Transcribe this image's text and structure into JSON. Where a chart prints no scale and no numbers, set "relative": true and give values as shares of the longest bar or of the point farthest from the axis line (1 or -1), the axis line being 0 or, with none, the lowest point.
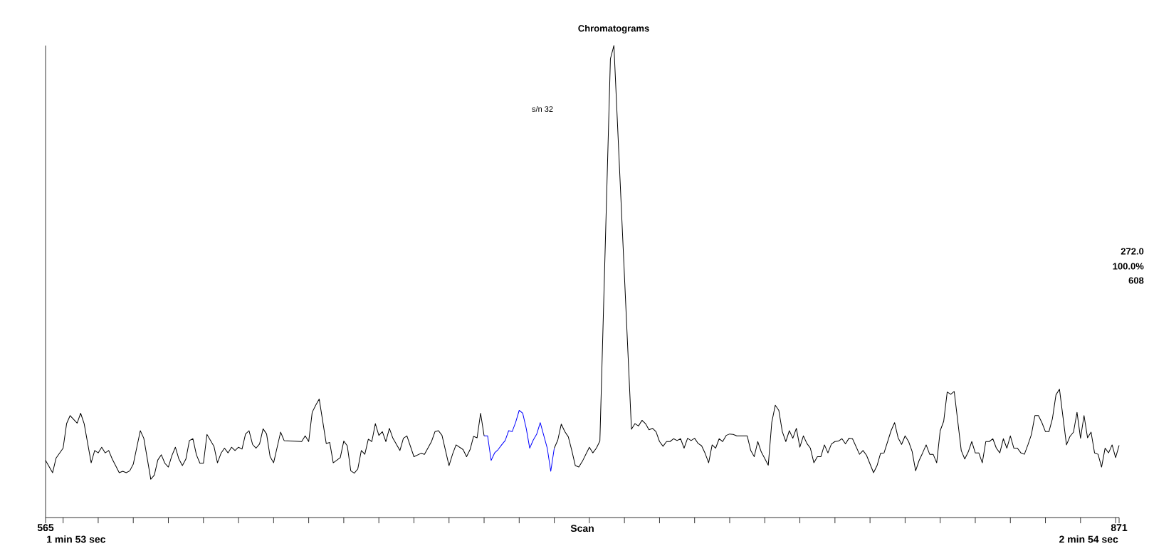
{
  "chart_data": {
    "type": "line",
    "title": "Chromatograms",
    "xlabel": "Scan",
    "relative": true,
    "xlim": [
      565,
      871
    ],
    "xticks": [
      565,
      {
        "value": 570,
        "label": null
      },
      {
        "value": 580,
        "label": null
      },
      {
        "value": 590,
        "label": null
      },
      {
        "value": 600,
        "label": null
      },
      {
        "value": 610,
        "label": null
      },
      {
        "value": 620,
        "label": null
      },
      {
        "value": 630,
        "label": null
      },
      {
        "value": 640,
        "label": null
      },
      {
        "value": 650,
        "label": null
      },
      {
        "value": 660,
        "label": null
      },
      {
        "value": 670,
        "label": null
      },
      {
        "value": 680,
        "label": null
      },
      {
        "value": 690,
        "label": null
      },
      {
        "value": 700,
        "label": null
      },
      {
        "value": 710,
        "label": null
      },
      {
        "value": 720,
        "label": null
      },
      {
        "value": 730,
        "label": null
      },
      {
        "value": 740,
        "label": null
      },
      {
        "value": 750,
        "label": null
      },
      {
        "value": 760,
        "label": null
      },
      {
        "value": 770,
        "label": null
      },
      {
        "value": 780,
        "label": null
      },
      {
        "value": 790,
        "label": null
      },
      {
        "value": 800,
        "label": null
      },
      {
        "value": 810,
        "label": null
      },
      {
        "value": 820,
        "label": null
      },
      {
        "value": 830,
        "label": null
      },
      {
        "value": 840,
        "label": null
      },
      {
        "value": 850,
        "label": null
      },
      {
        "value": 860,
        "label": null
      },
      {
        "value": 870,
        "label": null
      },
      871
    ],
    "annotations": [
      "1 min 53 sec",
      "2 min 54 sec",
      "s/n 32",
      "272.0",
      "100.0%",
      "608"
    ],
    "series": [
      {
        "color": "#000000",
        "x": [
          565,
          567,
          568,
          570,
          571,
          572,
          574,
          575,
          576,
          578,
          579,
          580,
          581,
          582,
          583,
          584,
          586,
          587,
          588,
          589,
          590,
          592,
          593,
          595,
          596,
          597,
          598,
          599,
          600,
          601,
          602,
          603,
          604,
          605,
          606,
          607,
          608,
          609,
          610,
          611,
          613,
          614,
          615,
          616,
          617,
          618,
          619,
          620,
          621,
          622,
          623,
          624,
          625,
          626,
          627,
          628,
          629,
          630,
          632,
          633,
          638,
          639,
          640,
          641,
          642,
          643,
          645,
          646,
          647,
          649,
          650,
          651,
          652,
          653,
          654,
          655,
          656,
          657,
          658,
          659,
          660,
          661,
          662,
          663,
          664,
          666,
          667,
          668,
          670,
          672,
          673,
          675,
          676,
          677,
          678,
          680,
          681,
          682,
          684,
          685,
          686,
          687,
          688,
          689,
          690
        ],
        "values": [
          0.121,
          0.095,
          0.126,
          0.147,
          0.199,
          0.216,
          0.2,
          0.221,
          0.199,
          0.116,
          0.142,
          0.137,
          0.149,
          0.137,
          0.142,
          0.124,
          0.095,
          0.098,
          0.095,
          0.099,
          0.113,
          0.184,
          0.168,
          0.081,
          0.09,
          0.122,
          0.133,
          0.115,
          0.107,
          0.131,
          0.149,
          0.124,
          0.11,
          0.124,
          0.163,
          0.167,
          0.133,
          0.115,
          0.115,
          0.176,
          0.151,
          0.116,
          0.136,
          0.147,
          0.137,
          0.149,
          0.142,
          0.149,
          0.145,
          0.177,
          0.184,
          0.155,
          0.147,
          0.156,
          0.188,
          0.177,
          0.129,
          0.116,
          0.181,
          0.163,
          0.161,
          0.173,
          0.161,
          0.223,
          0.238,
          0.251,
          0.157,
          0.159,
          0.116,
          0.127,
          0.162,
          0.152,
          0.099,
          0.094,
          0.103,
          0.142,
          0.134,
          0.166,
          0.161,
          0.199,
          0.174,
          0.182,
          0.161,
          0.189,
          0.168,
          0.142,
          0.168,
          0.173,
          0.129,
          0.136,
          0.134,
          0.161,
          0.182,
          0.184,
          0.174,
          0.11,
          0.134,
          0.154,
          0.144,
          0.129,
          0.144,
          0.172,
          0.169,
          0.221,
          0.173
        ]
      },
      {
        "color": "#0000ff",
        "x": [
          690,
          691,
          692,
          693,
          694,
          695,
          696,
          697,
          698,
          699,
          700,
          701,
          702,
          703,
          704,
          705,
          706,
          707,
          708,
          709,
          710
        ],
        "values": [
          0.173,
          0.173,
          0.121,
          0.137,
          0.144,
          0.154,
          0.163,
          0.184,
          0.182,
          0.202,
          0.227,
          0.221,
          0.189,
          0.147,
          0.164,
          0.177,
          0.201,
          0.174,
          0.147,
          0.098,
          0.147
        ]
      },
      {
        "color": "#000000",
        "x": [
          710,
          711,
          712,
          713,
          714,
          715,
          716,
          717,
          718,
          720,
          721,
          722,
          723,
          726,
          727,
          732,
          733,
          734,
          735,
          736,
          737,
          738,
          739,
          740,
          741,
          742,
          743,
          744,
          745,
          746,
          747,
          748,
          749,
          750,
          751,
          752,
          753,
          754,
          755,
          756,
          757,
          758,
          759,
          760,
          761,
          762,
          765,
          766,
          767,
          768,
          769,
          771,
          772,
          773,
          774,
          775,
          776,
          777,
          778,
          779,
          780,
          781,
          782,
          783,
          784,
          785,
          786,
          787,
          788,
          789,
          790,
          791,
          792,
          793,
          794,
          795,
          797,
          798,
          799,
          801,
          802,
          803,
          804,
          806,
          807,
          808,
          809,
          810,
          811,
          812,
          813,
          814,
          815,
          816,
          817,
          818,
          819,
          820,
          821,
          822,
          823,
          824,
          826,
          827,
          828,
          829,
          830,
          831,
          832,
          833,
          834,
          835,
          836,
          837,
          838,
          839,
          840,
          841,
          842,
          843,
          844,
          845,
          846,
          847,
          848,
          849,
          850,
          851,
          852,
          853,
          854,
          856,
          857,
          858,
          859,
          860,
          861,
          862,
          863,
          864,
          865,
          866,
          867,
          868,
          869,
          870,
          871
        ],
        "values": [
          0.147,
          0.164,
          0.198,
          0.182,
          0.171,
          0.142,
          0.11,
          0.107,
          0.119,
          0.149,
          0.137,
          0.147,
          0.162,
          0.972,
          1.0,
          0.187,
          0.199,
          0.194,
          0.206,
          0.199,
          0.186,
          0.189,
          0.182,
          0.161,
          0.151,
          0.161,
          0.161,
          0.167,
          0.163,
          0.167,
          0.147,
          0.168,
          0.163,
          0.168,
          0.157,
          0.152,
          0.136,
          0.116,
          0.154,
          0.147,
          0.167,
          0.161,
          0.174,
          0.177,
          0.176,
          0.173,
          0.173,
          0.142,
          0.129,
          0.161,
          0.139,
          0.111,
          0.202,
          0.238,
          0.227,
          0.182,
          0.161,
          0.184,
          0.168,
          0.189,
          0.149,
          0.173,
          0.157,
          0.147,
          0.116,
          0.129,
          0.129,
          0.154,
          0.137,
          0.156,
          0.161,
          0.162,
          0.167,
          0.156,
          0.168,
          0.167,
          0.134,
          0.142,
          0.132,
          0.095,
          0.11,
          0.136,
          0.137,
          0.184,
          0.201,
          0.169,
          0.155,
          0.173,
          0.161,
          0.14,
          0.099,
          0.121,
          0.137,
          0.154,
          0.134,
          0.134,
          0.116,
          0.184,
          0.204,
          0.266,
          0.261,
          0.267,
          0.142,
          0.124,
          0.139,
          0.161,
          0.137,
          0.137,
          0.116,
          0.161,
          0.161,
          0.167,
          0.147,
          0.137,
          0.167,
          0.147,
          0.173,
          0.147,
          0.147,
          0.137,
          0.134,
          0.154,
          0.176,
          0.216,
          0.216,
          0.201,
          0.182,
          0.182,
          0.21,
          0.26,
          0.272,
          0.154,
          0.172,
          0.181,
          0.223,
          0.168,
          0.216,
          0.169,
          0.181,
          0.137,
          0.134,
          0.107,
          0.147,
          0.137,
          0.154,
          0.127,
          0.153
        ]
      }
    ]
  }
}
